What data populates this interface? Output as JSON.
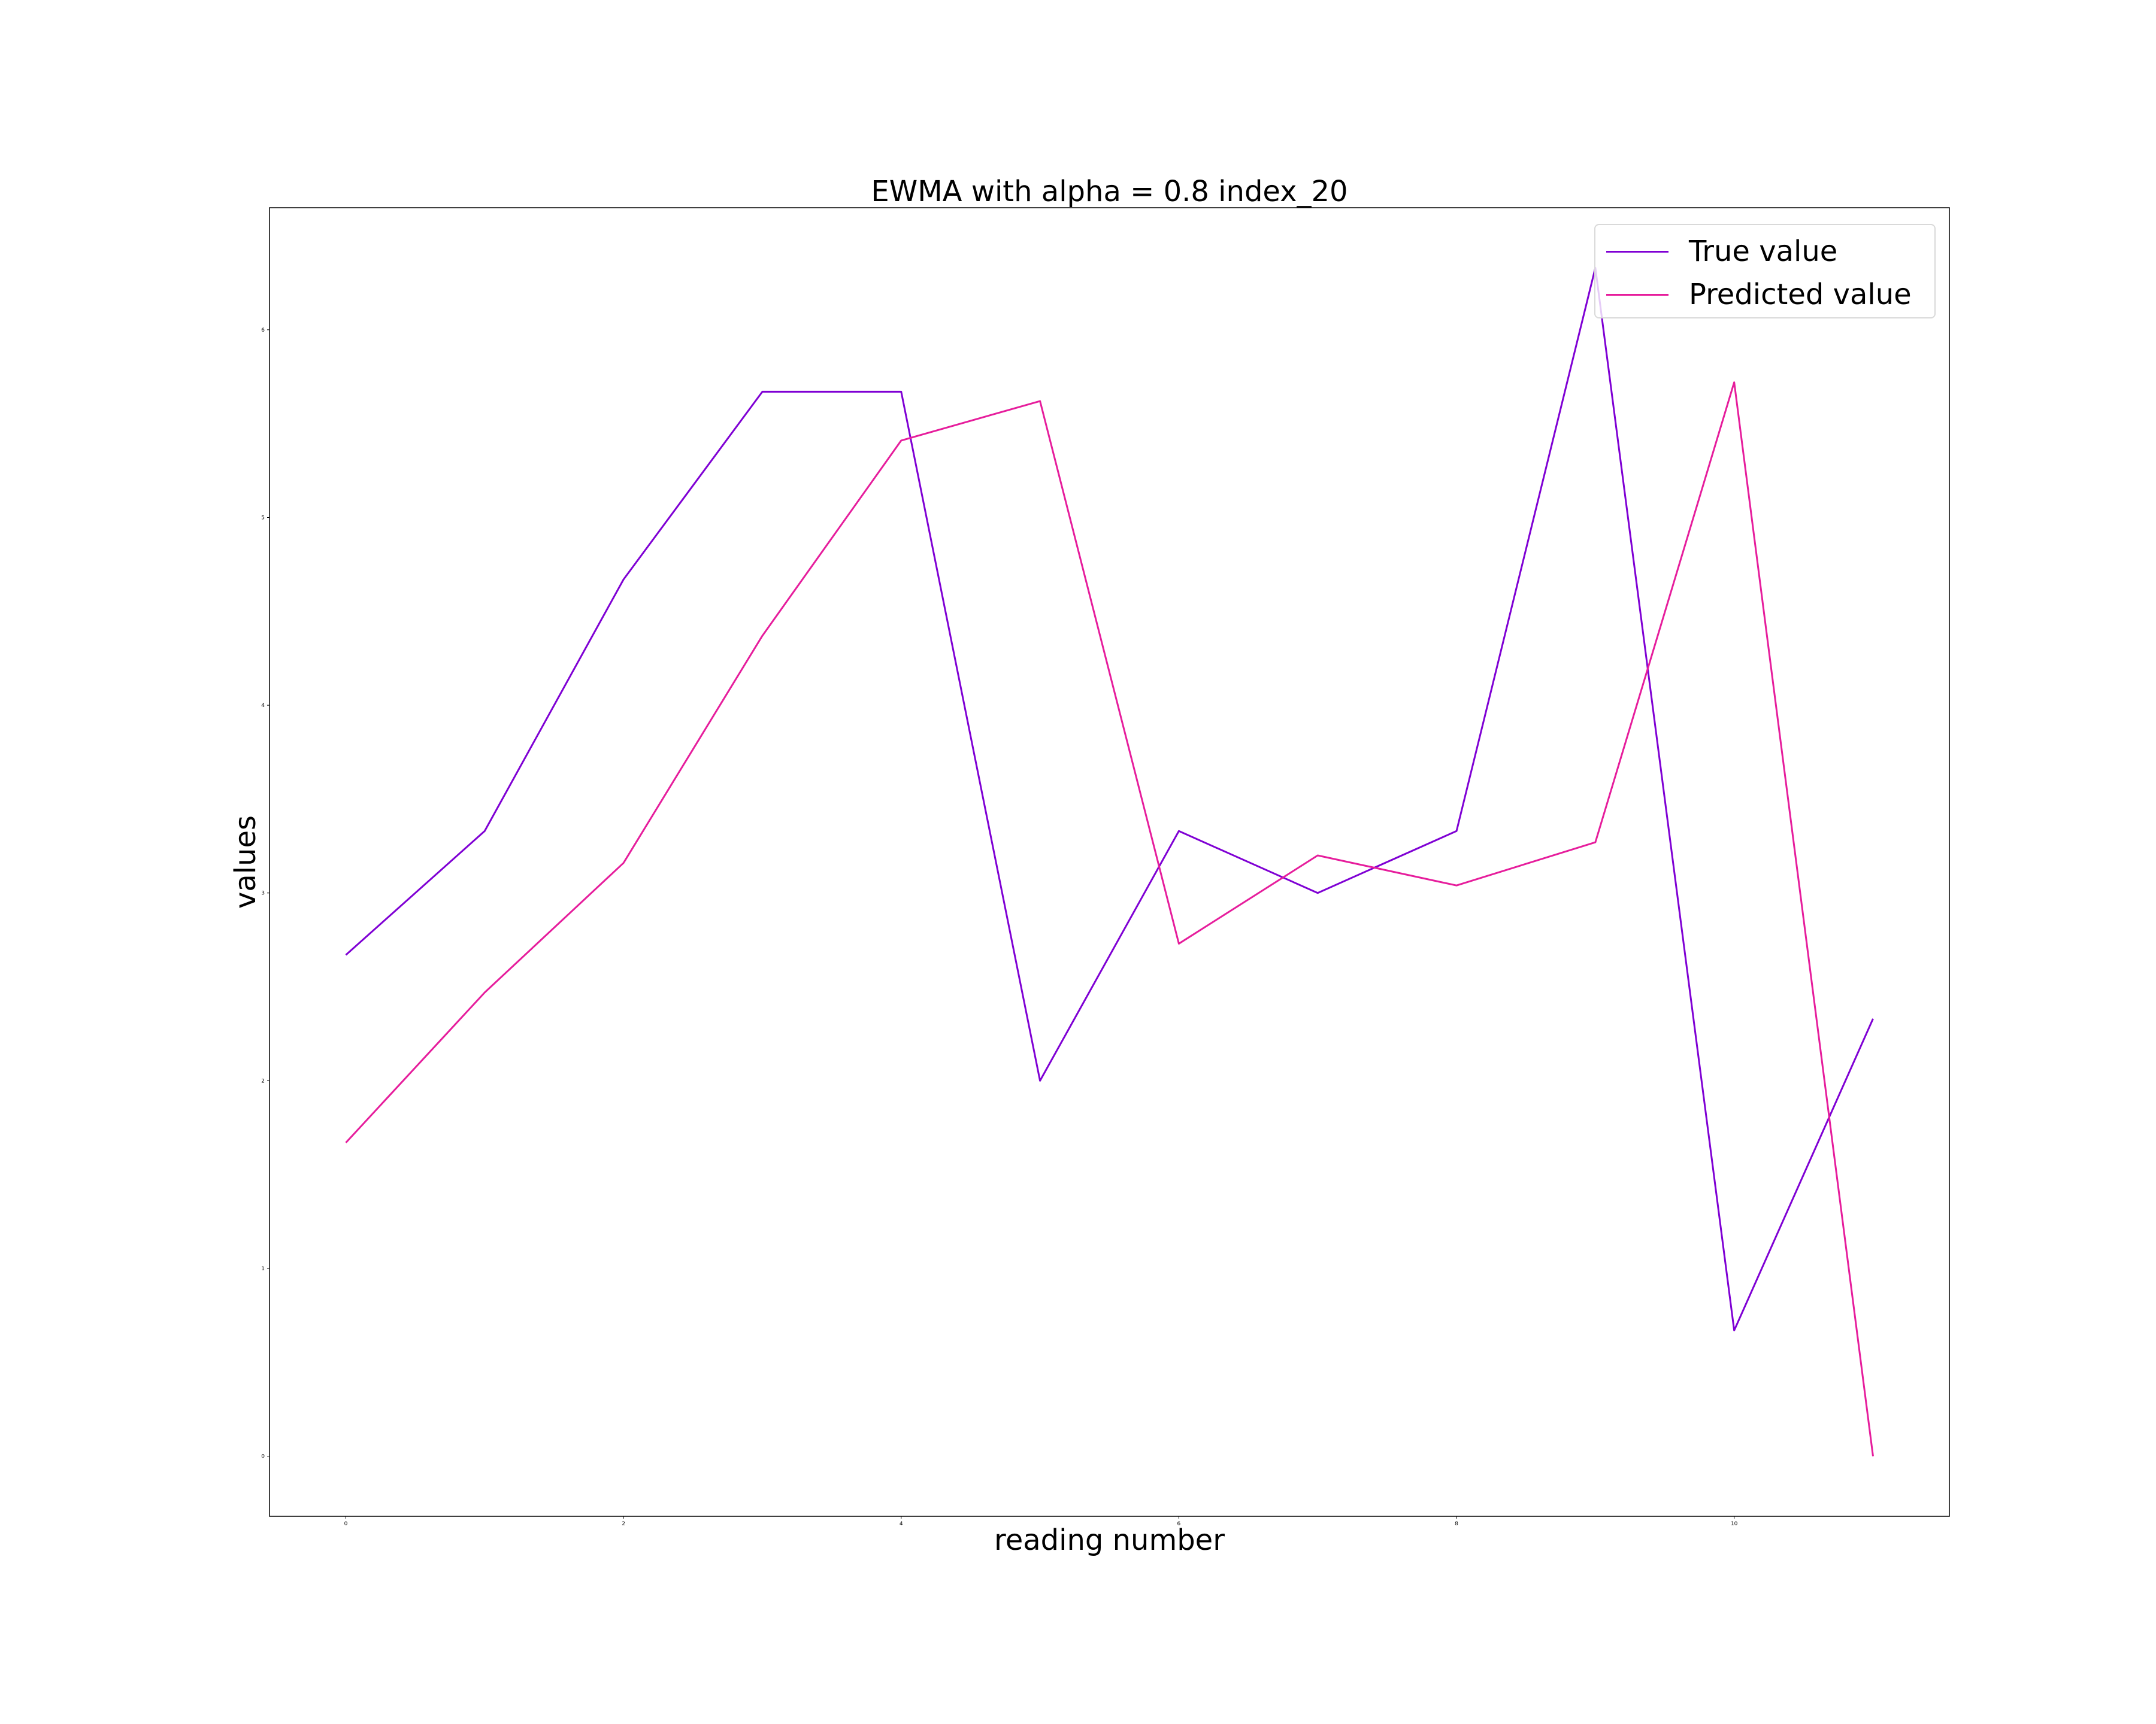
{
  "chart_data": {
    "type": "line",
    "title": "EWMA with alpha = 0.8 index_20",
    "xlabel": "reading number",
    "ylabel": "values",
    "x": [
      0,
      1,
      2,
      3,
      4,
      5,
      6,
      7,
      8,
      9,
      10,
      11
    ],
    "xlim": [
      -0.55,
      11.55
    ],
    "ylim": [
      -0.32,
      6.65
    ],
    "xticks": [
      "0",
      "2",
      "4",
      "6",
      "8",
      "10"
    ],
    "yticks": [
      "0",
      "1",
      "2",
      "3",
      "4",
      "5",
      "6"
    ],
    "grid": false,
    "legend_position": "top-right",
    "series": [
      {
        "name": "True value",
        "color": "#7f00d4",
        "values": [
          2.67,
          3.33,
          4.67,
          5.67,
          5.67,
          2.0,
          3.33,
          3.0,
          3.33,
          6.33,
          0.67,
          2.33
        ]
      },
      {
        "name": "Predicted value",
        "color": "#e61d9c",
        "values": [
          1.67,
          2.47,
          3.16,
          4.37,
          5.41,
          5.62,
          2.73,
          3.2,
          3.04,
          3.27,
          5.72,
          0.0
        ]
      }
    ]
  }
}
